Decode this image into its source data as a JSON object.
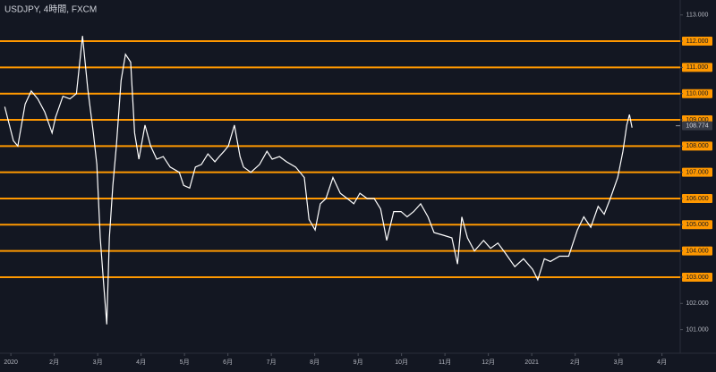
{
  "chart_data": {
    "type": "line",
    "title": "USDJPY, 4時間, FXCM",
    "color": "#ffffff",
    "x": [
      -0.14,
      0.06,
      0.16,
      0.33,
      0.47,
      0.62,
      0.78,
      0.95,
      1.03,
      1.2,
      1.36,
      1.51,
      1.65,
      1.77,
      1.9,
      1.98,
      2.06,
      2.14,
      2.21,
      2.27,
      2.35,
      2.43,
      2.54,
      2.64,
      2.76,
      2.85,
      2.95,
      3.09,
      3.22,
      3.36,
      3.51,
      3.67,
      3.88,
      3.98,
      4.12,
      4.25,
      4.39,
      4.54,
      4.7,
      4.8,
      4.91,
      5.01,
      5.15,
      5.28,
      5.36,
      5.53,
      5.73,
      5.9,
      6.02,
      6.19,
      6.35,
      6.56,
      6.76,
      6.87,
      7.01,
      7.13,
      7.26,
      7.42,
      7.59,
      7.75,
      7.9,
      8.04,
      8.21,
      8.37,
      8.52,
      8.66,
      8.82,
      8.99,
      9.13,
      9.28,
      9.44,
      9.61,
      9.75,
      9.96,
      10.16,
      10.29,
      10.39,
      10.52,
      10.68,
      10.89,
      11.05,
      11.22,
      11.4,
      11.61,
      11.81,
      12.02,
      12.14,
      12.29,
      12.43,
      12.64,
      12.85,
      13.05,
      13.2,
      13.36,
      13.53,
      13.67,
      13.81,
      13.98,
      14.1,
      14.19,
      14.25,
      14.31
    ],
    "values": [
      109.5,
      108.2,
      108.0,
      109.6,
      110.1,
      109.8,
      109.3,
      108.5,
      109.1,
      109.9,
      109.8,
      110.0,
      112.2,
      110.2,
      108.5,
      107.3,
      104.5,
      102.7,
      101.2,
      104.5,
      106.5,
      108.0,
      110.5,
      111.5,
      111.2,
      108.5,
      107.5,
      108.8,
      108.0,
      107.5,
      107.6,
      107.2,
      107.0,
      106.5,
      106.4,
      107.2,
      107.3,
      107.7,
      107.4,
      107.6,
      107.8,
      108.0,
      108.8,
      107.6,
      107.2,
      107.0,
      107.3,
      107.8,
      107.5,
      107.6,
      107.4,
      107.2,
      106.8,
      105.2,
      104.8,
      105.8,
      106.0,
      106.8,
      106.2,
      106.0,
      105.8,
      106.2,
      106.0,
      106.0,
      105.6,
      104.4,
      105.5,
      105.5,
      105.3,
      105.5,
      105.8,
      105.3,
      104.7,
      104.6,
      104.5,
      103.5,
      105.3,
      104.5,
      104.0,
      104.4,
      104.1,
      104.3,
      103.9,
      103.4,
      103.7,
      103.3,
      102.9,
      103.7,
      103.6,
      103.8,
      103.8,
      104.8,
      105.3,
      104.9,
      105.7,
      105.4,
      106.0,
      106.8,
      107.8,
      108.8,
      109.2,
      108.7
    ],
    "xlim": [
      -0.25,
      15.42
    ],
    "xticks": [
      {
        "value": 0,
        "label": "2020"
      },
      {
        "value": 1,
        "label": "2月"
      },
      {
        "value": 2,
        "label": "3月"
      },
      {
        "value": 3,
        "label": "4月"
      },
      {
        "value": 4,
        "label": "5月"
      },
      {
        "value": 5,
        "label": "6月"
      },
      {
        "value": 6,
        "label": "7月"
      },
      {
        "value": 7,
        "label": "8月"
      },
      {
        "value": 8,
        "label": "9月"
      },
      {
        "value": 9,
        "label": "10月"
      },
      {
        "value": 10,
        "label": "11月"
      },
      {
        "value": 11,
        "label": "12月"
      },
      {
        "value": 12,
        "label": "2021"
      },
      {
        "value": 13,
        "label": "2月"
      },
      {
        "value": 14,
        "label": "3月"
      },
      {
        "value": 15,
        "label": "4月"
      }
    ],
    "ylim": [
      100.1,
      113.57
    ],
    "yticks": [
      {
        "value": 101,
        "label": "101.000"
      },
      {
        "value": 102,
        "label": "102.000"
      },
      {
        "value": 103,
        "label": "103.000"
      },
      {
        "value": 104,
        "label": "104.000"
      },
      {
        "value": 105,
        "label": "105.000"
      },
      {
        "value": 106,
        "label": "106.000"
      },
      {
        "value": 107,
        "label": "107.000"
      },
      {
        "value": 108,
        "label": "108.000"
      },
      {
        "value": 109,
        "label": "109.000"
      },
      {
        "value": 110,
        "label": "110.000"
      },
      {
        "value": 111,
        "label": "111.000"
      },
      {
        "value": 112,
        "label": "112.000"
      },
      {
        "value": 113,
        "label": "113.000"
      }
    ],
    "levels": [
      103,
      104,
      105,
      106,
      107,
      108,
      109,
      110,
      111,
      112
    ],
    "level_color": "#ff9800",
    "last_price": 108.774
  }
}
